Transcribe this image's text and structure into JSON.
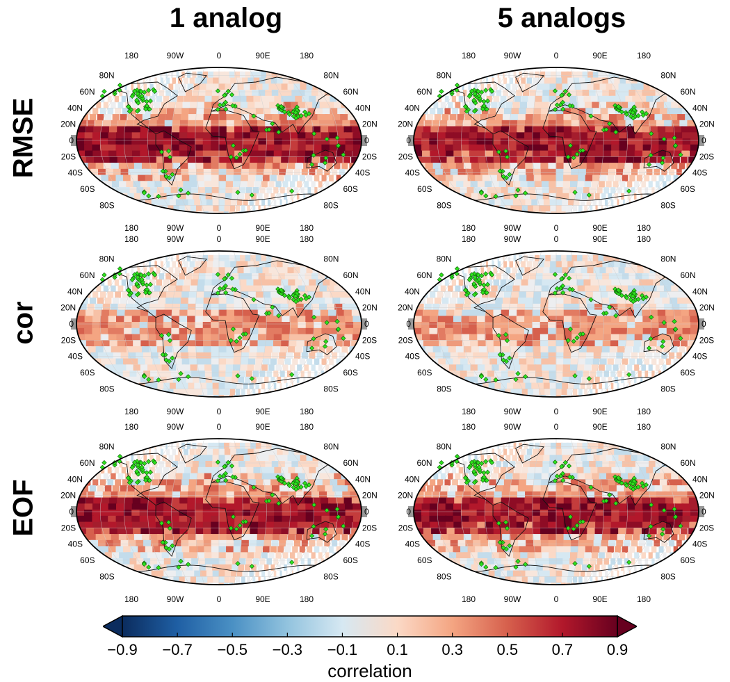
{
  "columns": [
    "1 analog",
    "5 analogs"
  ],
  "rows": [
    "RMSE",
    "cor",
    "EOF"
  ],
  "map": {
    "lon_labels_top": [
      "180",
      "90W",
      "0",
      "90E",
      "180"
    ],
    "lon_labels_bottom": [
      "180",
      "90W",
      "0",
      "90E",
      "180"
    ],
    "lat_labels": [
      "80N",
      "60N",
      "40N",
      "20N",
      "0",
      "20S",
      "40S",
      "60S",
      "80S"
    ],
    "marker_color": "#2ee01e",
    "marker_shape": "diamond-icon"
  },
  "colorbar": {
    "ticks": [
      "−0.9",
      "−0.7",
      "−0.5",
      "−0.3",
      "−0.1",
      "0.1",
      "0.3",
      "0.5",
      "0.7",
      "0.9"
    ],
    "title": "correlation",
    "colors": [
      "#0b2c5e",
      "#1f5fa4",
      "#4a90c4",
      "#92c3de",
      "#d6e8f2",
      "#fbd9c6",
      "#f4a582",
      "#d6604d",
      "#b2182b",
      "#67001f"
    ]
  }
}
